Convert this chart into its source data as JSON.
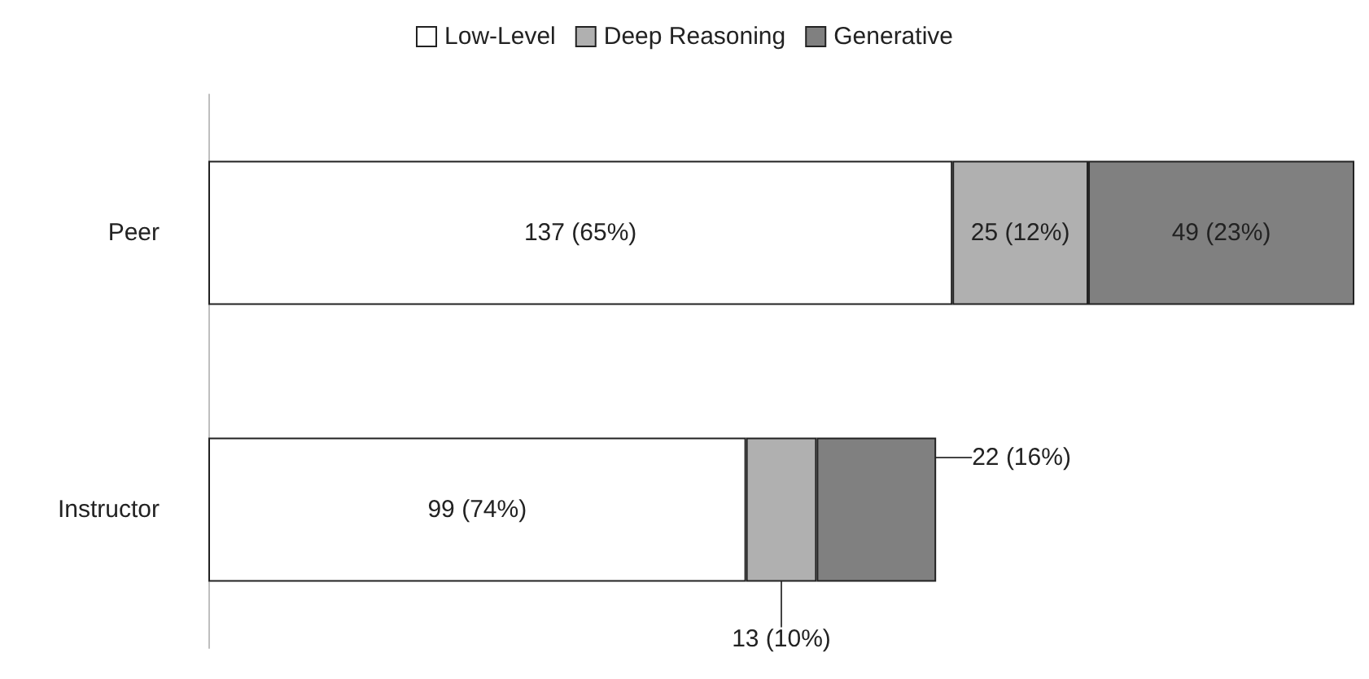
{
  "chart_data": {
    "type": "bar",
    "orientation": "horizontal",
    "stacked": true,
    "legend": "top",
    "categories": [
      "Peer",
      "Instructor"
    ],
    "series": [
      {
        "name": "Low-Level",
        "color": "#ffffff",
        "values": [
          137,
          99
        ],
        "value_labels": [
          "137 (65%)",
          "99 (74%)"
        ]
      },
      {
        "name": "Deep Reasoning",
        "color": "#b0b0b0",
        "values": [
          25,
          13
        ],
        "value_labels": [
          "25 (12%)",
          "13 (10%)"
        ]
      },
      {
        "name": "Generative",
        "color": "#808080",
        "values": [
          49,
          22
        ],
        "value_labels": [
          "49 (23%)",
          "22 (16%)"
        ]
      }
    ]
  }
}
